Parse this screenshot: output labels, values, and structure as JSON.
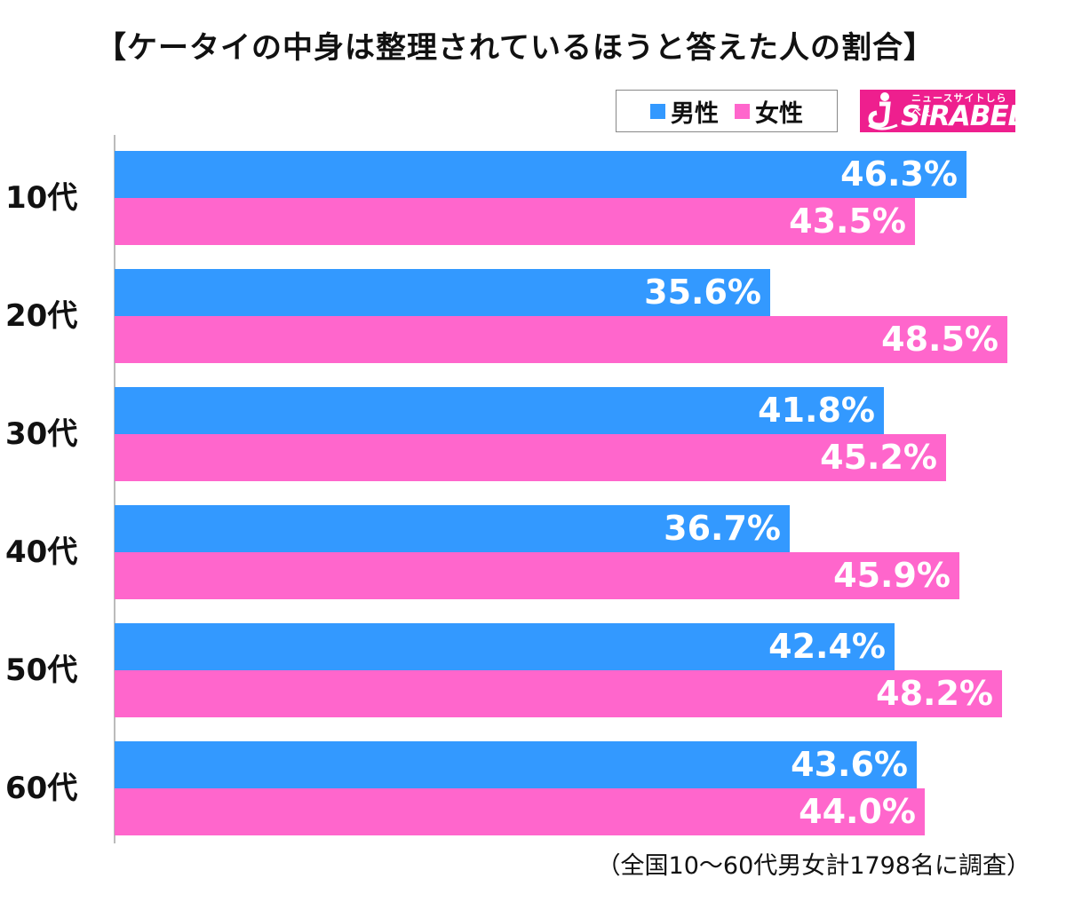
{
  "chart_data": {
    "type": "bar",
    "orientation": "horizontal",
    "title": "【ケータイの中身は整理されているほうと答えた人の割合】",
    "categories": [
      "10代",
      "20代",
      "30代",
      "40代",
      "50代",
      "60代"
    ],
    "series": [
      {
        "name": "男性",
        "color": "#3399ff",
        "values": [
          46.3,
          35.6,
          41.8,
          36.7,
          42.4,
          43.6
        ]
      },
      {
        "name": "女性",
        "color": "#ff66cc",
        "values": [
          43.5,
          48.5,
          45.2,
          45.9,
          48.2,
          44.0
        ]
      }
    ],
    "value_suffix": "%",
    "xlim": [
      0,
      48.7
    ],
    "legend_position": "top-right",
    "footnote": "（全国10～60代男女計1798名に調査）"
  },
  "logo": {
    "tagline": "ニュースサイトしらべぇ",
    "name": "SIRABEE"
  }
}
